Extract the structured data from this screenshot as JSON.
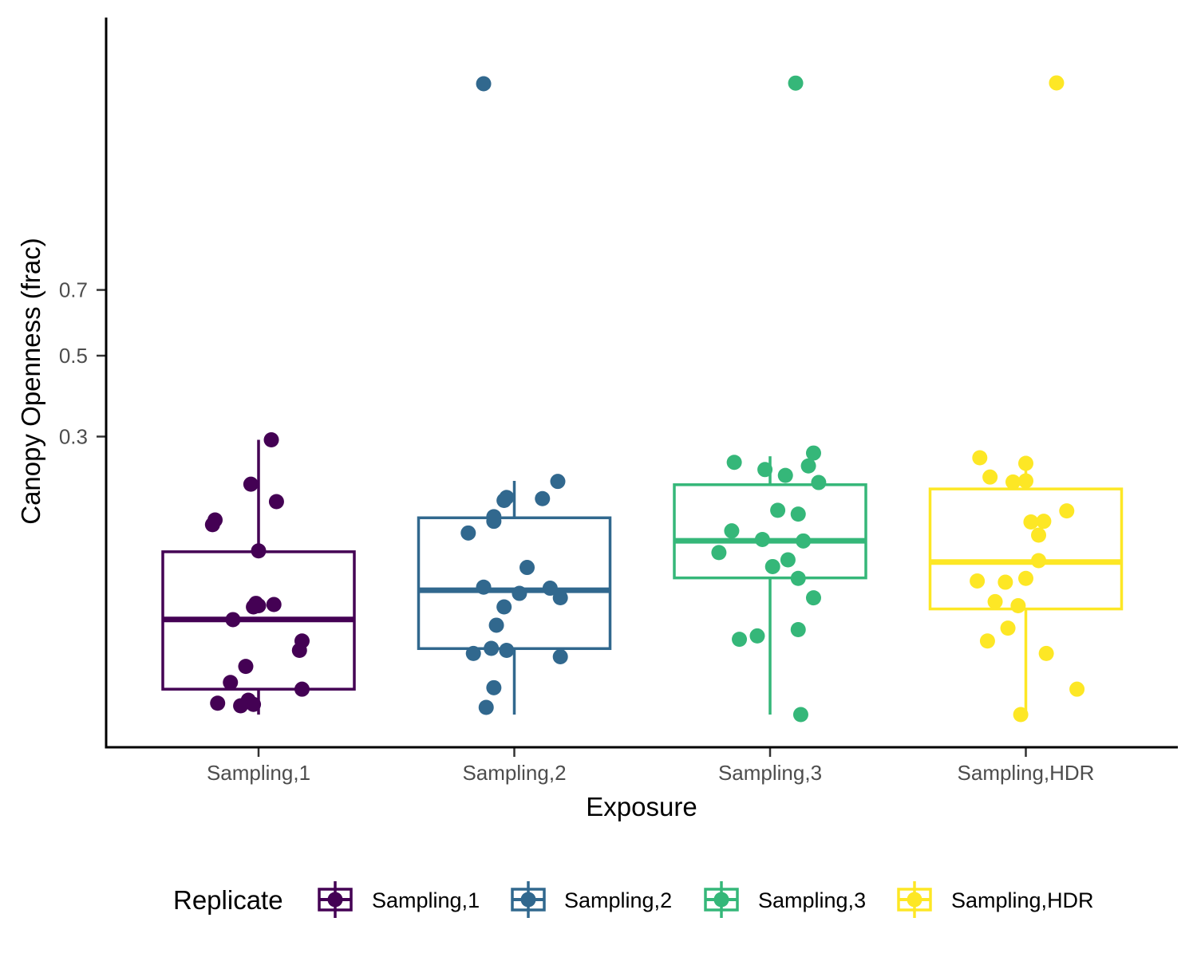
{
  "chart_data": {
    "type": "box",
    "xlabel": "Exposure",
    "ylabel": "Canopy Openness (frac)",
    "y_scale": "sqrt",
    "yticks": [
      0.3,
      0.5,
      0.7
    ],
    "ylim": [
      0,
      1.7
    ],
    "grid": false,
    "legend": {
      "title": "Replicate",
      "placement": "bottom"
    },
    "categories": [
      "Sampling,1",
      "Sampling,2",
      "Sampling,3",
      "Sampling,HDR"
    ],
    "series": [
      {
        "name": "Sampling,1",
        "color": "#440154",
        "box": {
          "lower_whisker": 0.0,
          "q1": 0.0025,
          "median": 0.0351,
          "q3": 0.1029,
          "upper_whisker": 0.293
        },
        "points": [
          {
            "x": 0.05,
            "y": 0.293
          },
          {
            "x": -0.03,
            "y": 0.206
          },
          {
            "x": 0.07,
            "y": 0.176
          },
          {
            "x": -0.17,
            "y": 0.147
          },
          {
            "x": -0.18,
            "y": 0.14
          },
          {
            "x": 0.0,
            "y": 0.104
          },
          {
            "x": -0.01,
            "y": 0.048
          },
          {
            "x": 0.06,
            "y": 0.047
          },
          {
            "x": -0.02,
            "y": 0.045
          },
          {
            "x": 0.0,
            "y": 0.046
          },
          {
            "x": -0.1,
            "y": 0.035
          },
          {
            "x": 0.17,
            "y": 0.021
          },
          {
            "x": 0.16,
            "y": 0.016
          },
          {
            "x": -0.05,
            "y": 0.009
          },
          {
            "x": -0.11,
            "y": 0.004
          },
          {
            "x": 0.17,
            "y": 0.0025
          },
          {
            "x": -0.04,
            "y": 0.0008
          },
          {
            "x": -0.16,
            "y": 0.0005
          },
          {
            "x": -0.02,
            "y": 0.0004
          },
          {
            "x": -0.07,
            "y": 0.0003
          }
        ]
      },
      {
        "name": "Sampling,2",
        "color": "#31688e",
        "box": {
          "lower_whisker": 0.0,
          "q1": 0.0169,
          "median": 0.06,
          "q3": 0.1503,
          "upper_whisker": 0.212
        },
        "points": [
          {
            "x": -0.12,
            "y": 1.545
          },
          {
            "x": 0.17,
            "y": 0.211
          },
          {
            "x": -0.03,
            "y": 0.183
          },
          {
            "x": 0.11,
            "y": 0.181
          },
          {
            "x": -0.04,
            "y": 0.178
          },
          {
            "x": -0.08,
            "y": 0.152
          },
          {
            "x": -0.08,
            "y": 0.145
          },
          {
            "x": -0.18,
            "y": 0.128
          },
          {
            "x": 0.05,
            "y": 0.084
          },
          {
            "x": -0.12,
            "y": 0.063
          },
          {
            "x": 0.14,
            "y": 0.062
          },
          {
            "x": 0.02,
            "y": 0.057
          },
          {
            "x": 0.18,
            "y": 0.053
          },
          {
            "x": -0.04,
            "y": 0.045
          },
          {
            "x": -0.07,
            "y": 0.031
          },
          {
            "x": -0.09,
            "y": 0.017
          },
          {
            "x": -0.03,
            "y": 0.016
          },
          {
            "x": 0.18,
            "y": 0.013
          },
          {
            "x": -0.16,
            "y": 0.0145
          },
          {
            "x": -0.08,
            "y": 0.0028
          },
          {
            "x": -0.11,
            "y": 0.0002
          }
        ]
      },
      {
        "name": "Sampling,3",
        "color": "#35b779",
        "box": {
          "lower_whisker": 0.0,
          "q1": 0.0725,
          "median": 0.1172,
          "q3": 0.2051,
          "upper_whisker": 0.259
        },
        "points": [
          {
            "x": 0.1,
            "y": 1.548
          },
          {
            "x": 0.17,
            "y": 0.2655
          },
          {
            "x": -0.14,
            "y": 0.247
          },
          {
            "x": 0.15,
            "y": 0.24
          },
          {
            "x": -0.02,
            "y": 0.233
          },
          {
            "x": 0.06,
            "y": 0.222
          },
          {
            "x": 0.19,
            "y": 0.209
          },
          {
            "x": 0.03,
            "y": 0.162
          },
          {
            "x": 0.11,
            "y": 0.156
          },
          {
            "x": -0.15,
            "y": 0.131
          },
          {
            "x": -0.03,
            "y": 0.119
          },
          {
            "x": 0.13,
            "y": 0.117
          },
          {
            "x": -0.2,
            "y": 0.1019
          },
          {
            "x": 0.07,
            "y": 0.0929
          },
          {
            "x": 0.01,
            "y": 0.085
          },
          {
            "x": 0.11,
            "y": 0.072
          },
          {
            "x": 0.17,
            "y": 0.0529
          },
          {
            "x": 0.11,
            "y": 0.028
          },
          {
            "x": -0.05,
            "y": 0.024
          },
          {
            "x": -0.12,
            "y": 0.022
          },
          {
            "x": 0.12,
            "y": 0.0
          }
        ]
      },
      {
        "name": "Sampling,HDR",
        "color": "#fde725",
        "box": {
          "lower_whisker": 0.0,
          "q1": 0.0433,
          "median": 0.0903,
          "q3": 0.1976,
          "upper_whisker": 0.26
        },
        "points": [
          {
            "x": 0.12,
            "y": 1.549
          },
          {
            "x": -0.18,
            "y": 0.256
          },
          {
            "x": 0.0,
            "y": 0.245
          },
          {
            "x": -0.14,
            "y": 0.219
          },
          {
            "x": 0.0,
            "y": 0.212
          },
          {
            "x": -0.05,
            "y": 0.21
          },
          {
            "x": 0.16,
            "y": 0.161
          },
          {
            "x": 0.07,
            "y": 0.145
          },
          {
            "x": 0.02,
            "y": 0.144
          },
          {
            "x": 0.05,
            "y": 0.125
          },
          {
            "x": 0.05,
            "y": 0.092
          },
          {
            "x": 0.0,
            "y": 0.072
          },
          {
            "x": -0.19,
            "y": 0.0693
          },
          {
            "x": -0.08,
            "y": 0.068
          },
          {
            "x": -0.12,
            "y": 0.0495
          },
          {
            "x": -0.03,
            "y": 0.046
          },
          {
            "x": -0.07,
            "y": 0.029
          },
          {
            "x": -0.15,
            "y": 0.021
          },
          {
            "x": 0.08,
            "y": 0.0145
          },
          {
            "x": 0.2,
            "y": 0.0025
          },
          {
            "x": -0.02,
            "y": 0.0
          }
        ]
      }
    ]
  }
}
